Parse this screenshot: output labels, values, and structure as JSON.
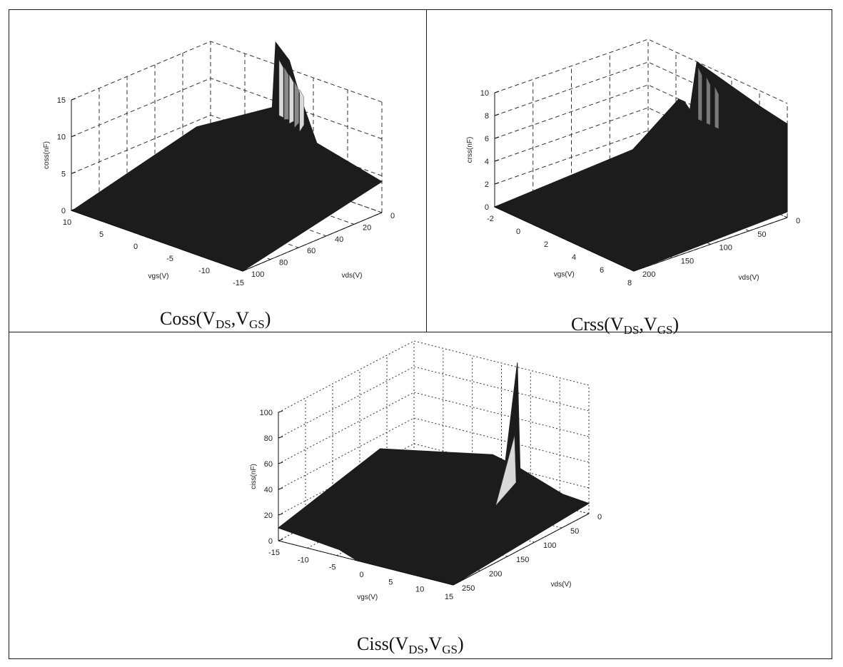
{
  "chart_data": [
    {
      "type": "surface",
      "caption": {
        "base": "Coss(V",
        "sub1": "DS",
        "mid": ",V",
        "sub2": "GS",
        "end": ")"
      },
      "zlabel": "coss(nF)",
      "xlabel": "vgs(V)",
      "ylabel": "vds(V)",
      "z_ticks": [
        "0",
        "5",
        "10",
        "15"
      ],
      "x_ticks": [
        "10",
        "5",
        "0",
        "-5",
        "-10",
        "-15"
      ],
      "y_ticks": [
        "0",
        "20",
        "40",
        "60",
        "80",
        "100"
      ],
      "zlim": [
        0,
        15
      ],
      "xlim": [
        10,
        -15
      ],
      "ylim": [
        0,
        100
      ],
      "grid": true,
      "surface_color": "#1c1c1c",
      "highlight_color": "#d9d9d9"
    },
    {
      "type": "surface",
      "caption": {
        "base": "Crss(V",
        "sub1": "DS",
        "mid": ",V",
        "sub2": "GS",
        "end": ")"
      },
      "zlabel": "crss(nF)",
      "xlabel": "vgs(V)",
      "ylabel": "vds(V)",
      "z_ticks": [
        "0",
        "2",
        "4",
        "6",
        "8",
        "10"
      ],
      "x_ticks": [
        "-2",
        "0",
        "2",
        "4",
        "6",
        "8"
      ],
      "y_ticks": [
        "0",
        "50",
        "100",
        "150",
        "200"
      ],
      "zlim": [
        0,
        10
      ],
      "xlim": [
        -2,
        8
      ],
      "ylim": [
        0,
        200
      ],
      "grid": true,
      "surface_color": "#1c1c1c",
      "highlight_color": "#d9d9d9"
    },
    {
      "type": "surface",
      "caption": {
        "base": "Ciss(V",
        "sub1": "DS",
        "mid": ",V",
        "sub2": "GS",
        "end": ")"
      },
      "zlabel": "ciss(nF)",
      "xlabel": "vgs(V)",
      "ylabel": "vds(V)",
      "z_ticks": [
        "0",
        "20",
        "40",
        "60",
        "80",
        "100"
      ],
      "x_ticks": [
        "-15",
        "-10",
        "-5",
        "0",
        "5",
        "10",
        "15"
      ],
      "y_ticks": [
        "0",
        "50",
        "100",
        "150",
        "200",
        "250"
      ],
      "zlim": [
        0,
        100
      ],
      "xlim": [
        -15,
        15
      ],
      "ylim": [
        0,
        250
      ],
      "grid": true,
      "surface_color": "#1c1c1c",
      "highlight_color": "#d9d9d9"
    }
  ]
}
